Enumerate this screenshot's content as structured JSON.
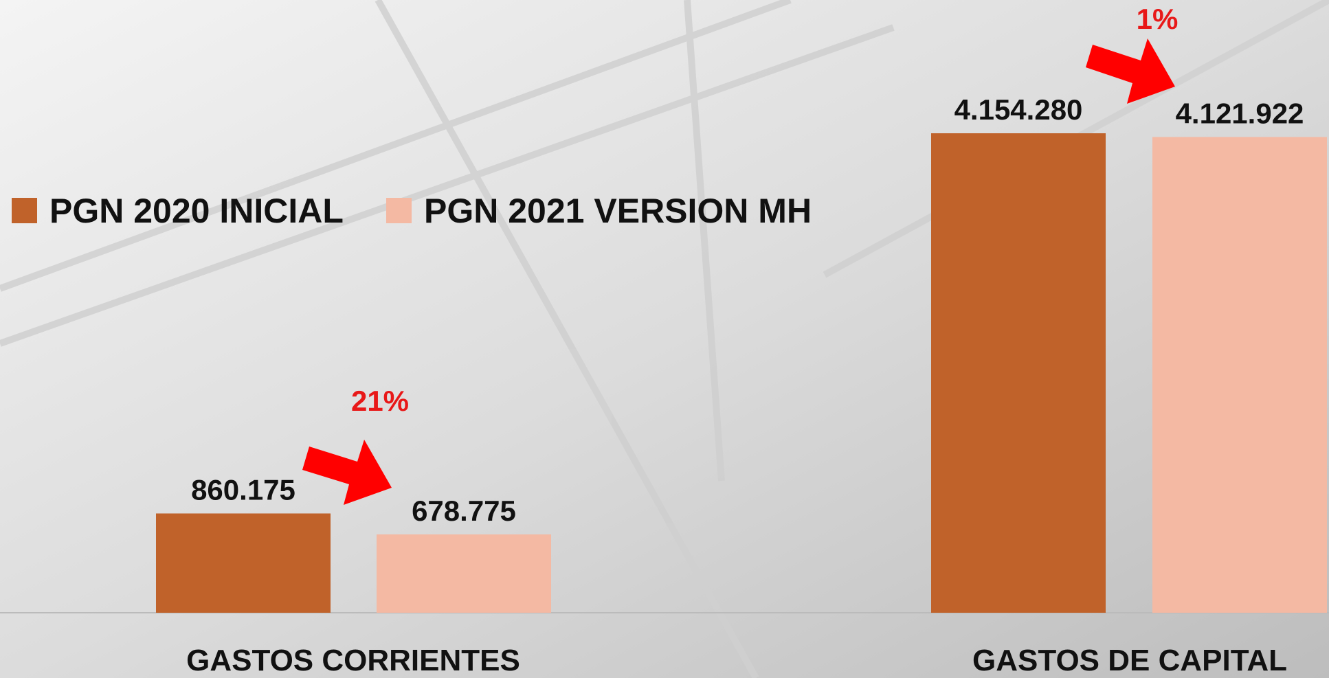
{
  "chart_data": {
    "type": "bar",
    "categories": [
      "GASTOS CORRIENTES",
      "GASTOS DE CAPITAL"
    ],
    "series": [
      {
        "name": "PGN 2020 INICIAL",
        "color": "#c0622a",
        "values": [
          860175,
          4154280
        ],
        "value_labels": [
          "860.175",
          "4.154.280"
        ]
      },
      {
        "name": "PGN 2021 VERSION MH",
        "color": "#f4b9a3",
        "values": [
          678775,
          4121922
        ],
        "value_labels": [
          "678.775",
          "4.121.922"
        ]
      }
    ],
    "annotations": [
      "21%",
      "1%"
    ],
    "legend": "top-left"
  }
}
